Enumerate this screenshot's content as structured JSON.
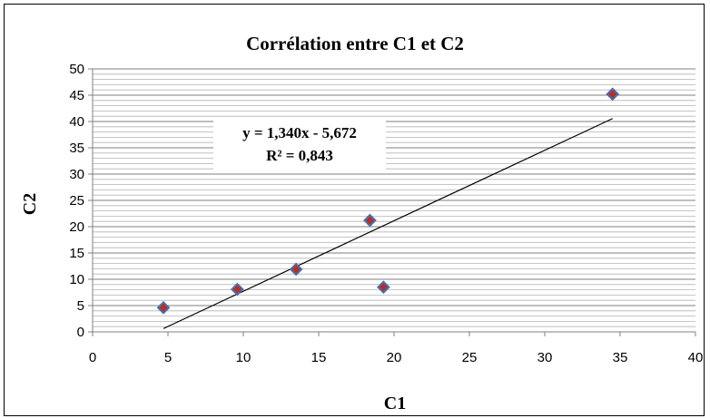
{
  "chart_data": {
    "type": "scatter",
    "title": "Corrélation entre C1 et C2",
    "xlabel": "C1",
    "ylabel": "C2",
    "xlim": [
      0,
      40
    ],
    "ylim": [
      0,
      50
    ],
    "x_ticks": [
      0,
      5,
      10,
      15,
      20,
      25,
      30,
      35,
      40
    ],
    "y_ticks": [
      0,
      5,
      10,
      15,
      20,
      25,
      30,
      35,
      40,
      45,
      50
    ],
    "grid": true,
    "legend": "none",
    "marker_fill": "#b03030",
    "marker_stroke": "#4f6fa8",
    "points": [
      {
        "x": 4.7,
        "y": 4.6
      },
      {
        "x": 9.6,
        "y": 8.1
      },
      {
        "x": 13.5,
        "y": 11.9
      },
      {
        "x": 18.4,
        "y": 21.2
      },
      {
        "x": 19.3,
        "y": 8.5
      },
      {
        "x": 34.5,
        "y": 45.2
      }
    ],
    "trendline": {
      "slope": 1.34,
      "intercept": -5.672,
      "x_range": [
        4.7,
        34.5
      ],
      "equation": "y = 1,340x - 5,672",
      "r_squared": "R² = 0,843"
    }
  }
}
